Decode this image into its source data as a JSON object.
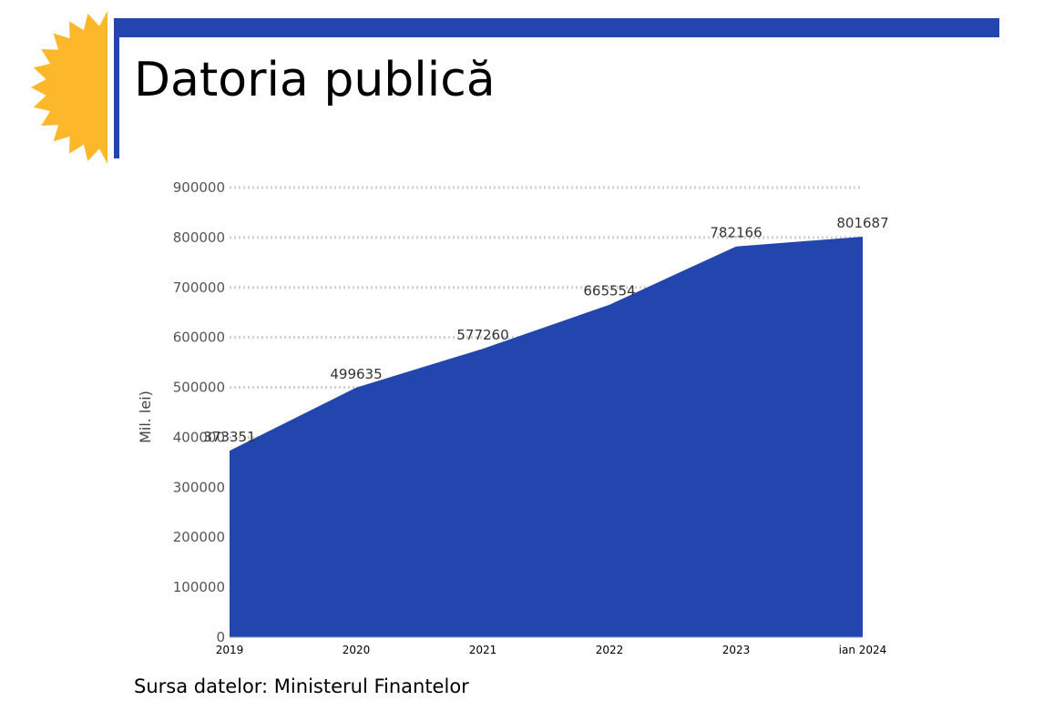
{
  "slide": {
    "title": "Datoria publică",
    "source": "Sursa datelor: Ministerul Finantelor"
  },
  "colors": {
    "accent": "#2346AE",
    "area_fill": "#2346AE",
    "sun": "#FDB72B",
    "grid": "#d0d0d0"
  },
  "chart_data": {
    "type": "area",
    "title": "",
    "xlabel": "",
    "ylabel": "Mil. lei)",
    "categories": [
      "2019",
      "2020",
      "2021",
      "2022",
      "2023",
      "ian 2024"
    ],
    "series": [
      {
        "values": [
          373351,
          499635,
          577260,
          665554,
          782166,
          801687
        ]
      }
    ],
    "data_labels": [
      "373351",
      "499635",
      "577260",
      "665554",
      "782166",
      "801687"
    ],
    "y_ticks": [
      0,
      100000,
      200000,
      300000,
      400000,
      500000,
      600000,
      700000,
      800000,
      900000
    ],
    "ylim": [
      0,
      900000
    ],
    "grid": true,
    "grid_style": "dotted",
    "legend": "none"
  }
}
